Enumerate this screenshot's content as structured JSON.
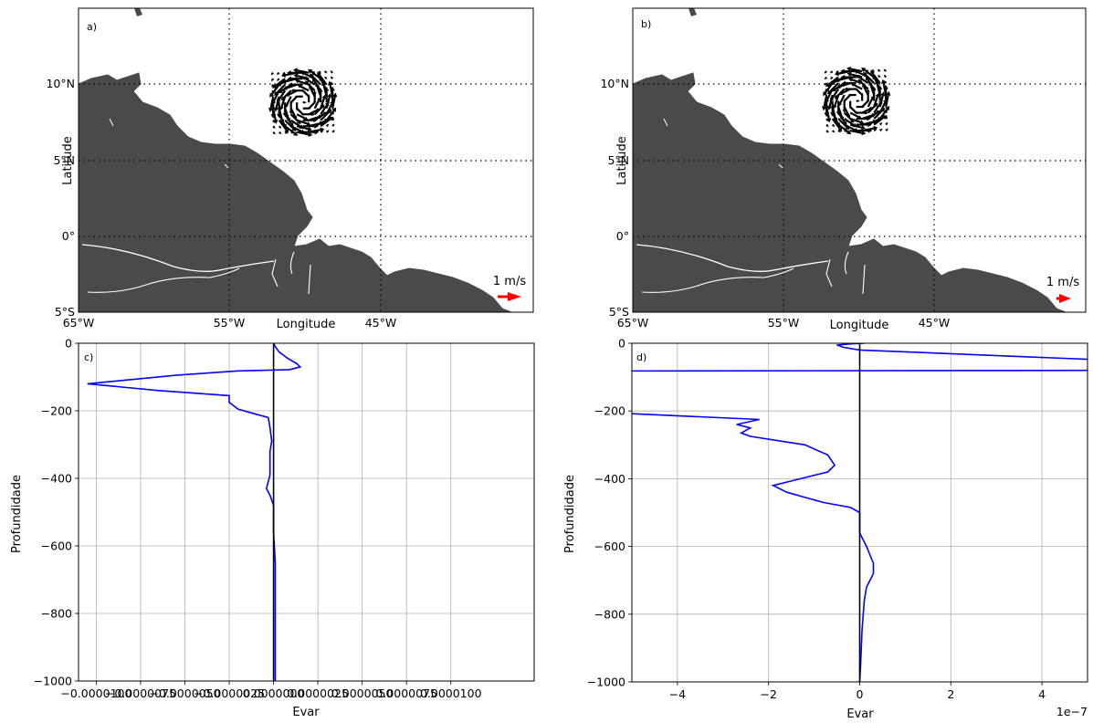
{
  "chart_data": [
    {
      "panel": "a)",
      "type": "map-quiver",
      "xlabel": "Longitude",
      "ylabel": "Latitude",
      "lat_ticks": [
        "10°N",
        "5°N",
        "0°",
        "5°S"
      ],
      "lon_ticks": [
        "65°W",
        "55°W",
        "45°W"
      ],
      "lat_values": [
        10,
        5,
        0,
        -5
      ],
      "lon_values": [
        -65,
        -55,
        -45
      ],
      "lon_range": [
        -65,
        -35
      ],
      "lat_range": [
        -5,
        15
      ],
      "reference_vector_label": "1 m/s",
      "reference_vector_color": "#ff0000",
      "land_color": "#4a4a4a",
      "eddy_center": [
        -50.2,
        8.8
      ],
      "grid": "dotted"
    },
    {
      "panel": "b)",
      "type": "map-quiver",
      "xlabel": "Longitude",
      "ylabel": "Latitude",
      "lat_ticks": [
        "10°N",
        "5°N",
        "0°",
        "5°S"
      ],
      "lon_ticks": [
        "65°W",
        "55°W",
        "45°W"
      ],
      "lat_values": [
        10,
        5,
        0,
        -5
      ],
      "lon_values": [
        -65,
        -55,
        -45
      ],
      "lon_range": [
        -65,
        -35
      ],
      "lat_range": [
        -5,
        15
      ],
      "reference_vector_label": "1 m/s",
      "reference_vector_color": "#ff0000",
      "land_color": "#4a4a4a",
      "eddy_center": [
        -50.2,
        8.9
      ],
      "grid": "dotted"
    },
    {
      "panel": "c)",
      "type": "line",
      "xlabel": "Evar",
      "ylabel": "Profundidade",
      "xlim": [
        -1.1e-05,
        1.47e-05
      ],
      "ylim": [
        -1000,
        0
      ],
      "xticks": [
        -1e-05,
        -7.5e-06,
        -5e-06,
        -2.5e-06,
        0,
        2.5e-06,
        5e-06,
        7.5e-06,
        1e-05
      ],
      "xtick_labels": [
        "−0.0000100",
        "−0.0000075",
        "−0.0000050",
        "−0.0000025",
        "0.0000000",
        "0.0000025",
        "0.0000050",
        "0.0000075",
        "0.0000100"
      ],
      "yticks": [
        0,
        -200,
        -400,
        -600,
        -800,
        -1000
      ],
      "ytick_labels": [
        "0",
        "−200",
        "−400",
        "−600",
        "−800",
        "−1000"
      ],
      "series": [
        {
          "color": "#0000ff",
          "x": [
            0,
            1e-07,
            3e-07,
            8e-07,
            1.3e-06,
            1.5e-06,
            9e-07,
            -2e-06,
            -5.5e-06,
            -8.5e-06,
            -1.05e-05,
            -6.5e-06,
            -2.5e-06,
            -2.5e-06,
            -2e-06,
            -1e-06,
            -3e-07,
            -2e-07,
            -1e-07,
            -2e-07,
            -2e-07,
            -2e-07,
            -3e-07,
            -4e-07,
            -2e-07,
            0,
            0,
            1e-07,
            1e-07,
            1e-07,
            1e-07
          ],
          "y": [
            0,
            -10,
            -25,
            -45,
            -60,
            -70,
            -78,
            -82,
            -95,
            -110,
            -120,
            -140,
            -155,
            -175,
            -195,
            -210,
            -220,
            -250,
            -290,
            -320,
            -350,
            -390,
            -410,
            -430,
            -450,
            -480,
            -560,
            -650,
            -750,
            -900,
            -1000
          ]
        },
        {
          "color": "#000000",
          "x": [
            0,
            0
          ],
          "y": [
            0,
            -1000
          ]
        }
      ],
      "grid": true
    },
    {
      "panel": "d)",
      "type": "line",
      "xlabel": "Evar",
      "ylabel": "Profundidade",
      "x_scale_label": "1e−7",
      "xlim": [
        -5,
        5
      ],
      "ylim": [
        -1000,
        0
      ],
      "xticks": [
        -4,
        -2,
        0,
        2,
        4
      ],
      "xtick_labels": [
        "−4",
        "−2",
        "0",
        "2",
        "4"
      ],
      "yticks": [
        0,
        -200,
        -400,
        -600,
        -800,
        -1000
      ],
      "ytick_labels": [
        "0",
        "−200",
        "−400",
        "−600",
        "−800",
        "−1000"
      ],
      "series": [
        {
          "color": "#0000ff",
          "x": [
            0.1,
            -0.2,
            -0.5,
            -0.35,
            0.0,
            5.5,
            5.5,
            -5.5,
            -5.5,
            -2.2,
            -2.7,
            -2.4,
            -2.6,
            -2.4,
            -1.2,
            -0.7,
            -0.55,
            -0.7,
            -1.6,
            -1.9,
            -1.6,
            -0.8,
            -0.2,
            0,
            0,
            0.15,
            0.3,
            0.3,
            0.15,
            0.1,
            0.05,
            0.02,
            0
          ],
          "y": [
            0,
            -2,
            -5,
            -12,
            -20,
            -50,
            -80,
            -82,
            -205,
            -225,
            -240,
            -250,
            -265,
            -275,
            -300,
            -330,
            -360,
            -380,
            -410,
            -420,
            -440,
            -470,
            -485,
            -500,
            -560,
            -600,
            -650,
            -680,
            -720,
            -760,
            -850,
            -950,
            -1000
          ]
        },
        {
          "color": "#000000",
          "x": [
            0,
            0
          ],
          "y": [
            0,
            -1000
          ]
        }
      ],
      "grid": true
    }
  ]
}
